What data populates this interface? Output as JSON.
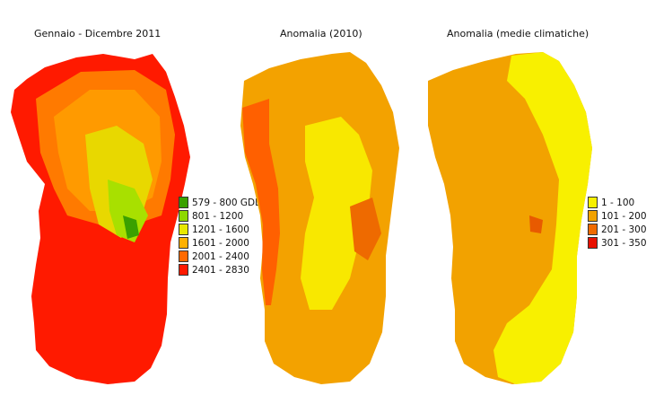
{
  "maps": [
    {
      "title": "Gennaio - Dicembre 2011",
      "base_color": "#ff1a00",
      "zones": [
        "#ff7a00",
        "#ff9a00",
        "#e8d800",
        "#a8e000",
        "#3aa000"
      ],
      "legend": [
        {
          "label": "579 - 800 GDD",
          "color": "#3aa000"
        },
        {
          "label": "801 - 1200",
          "color": "#8ed800"
        },
        {
          "label": "1201 - 1600",
          "color": "#e8e800"
        },
        {
          "label": "1601 - 2000",
          "color": "#ffb000"
        },
        {
          "label": "2001 - 2400",
          "color": "#ff6a00"
        },
        {
          "label": "2401 - 2830",
          "color": "#ff1a00"
        }
      ]
    },
    {
      "title": "Anomalia (2010)",
      "base_color": "#f3a200",
      "zones": [
        "#ff6000",
        "#f8e800",
        "#ee6a00"
      ],
      "legend": []
    },
    {
      "title": "Anomalia (medie climatiche)",
      "base_color": "#f2a200",
      "zones": [
        "#f8f000",
        "#e85a00"
      ],
      "legend": [
        {
          "label": "1 - 100",
          "color": "#f8f000"
        },
        {
          "label": "101 - 200",
          "color": "#f2a200"
        },
        {
          "label": "201 - 300",
          "color": "#f06a00"
        },
        {
          "label": "301 - 350",
          "color": "#e81000"
        }
      ]
    }
  ]
}
